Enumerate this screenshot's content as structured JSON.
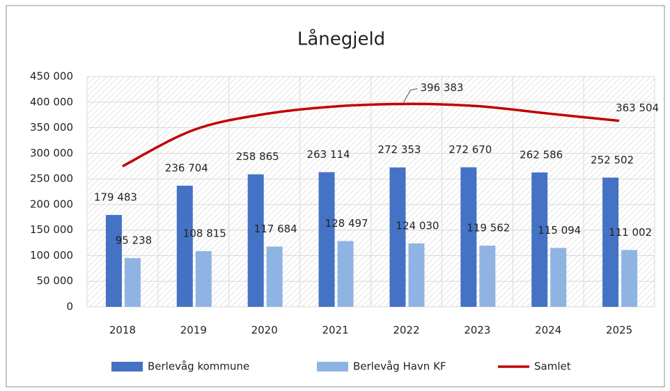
{
  "chart_data": {
    "type": "bar",
    "title": "Lånegjeld",
    "categories": [
      "2018",
      "2019",
      "2020",
      "2021",
      "2022",
      "2023",
      "2024",
      "2025"
    ],
    "series": [
      {
        "name": "Berlevåg kommune",
        "color": "#4472c4",
        "type": "bar",
        "values": [
          179483,
          236704,
          258865,
          263114,
          272353,
          272670,
          262586,
          252502
        ],
        "value_labels": [
          "179 483",
          "236 704",
          "258 865",
          "263 114",
          "272 353",
          "272 670",
          "262 586",
          "252 502"
        ]
      },
      {
        "name": "Berlevåg Havn KF",
        "color": "#8fb4e3",
        "type": "bar",
        "values": [
          95238,
          108815,
          117684,
          128497,
          124030,
          119562,
          115094,
          111002
        ],
        "value_labels": [
          "95 238",
          "108 815",
          "117 684",
          "128 497",
          "124 030",
          "119 562",
          "115 094",
          "111 002"
        ]
      },
      {
        "name": "Samlet",
        "color": "#c00000",
        "type": "line",
        "values": [
          274721,
          345519,
          376549,
          391611,
          396383,
          392232,
          377680,
          363504
        ],
        "value_labels": [
          null,
          null,
          null,
          null,
          "396 383",
          null,
          null,
          "363 504"
        ]
      }
    ],
    "ylim": [
      0,
      450000
    ],
    "yticks": [
      0,
      {
        "value": 50000,
        "label": "50 000"
      },
      {
        "value": 100000,
        "label": "100 000"
      },
      {
        "value": 150000,
        "label": "150 000"
      },
      {
        "value": 200000,
        "label": "200 000"
      },
      {
        "value": 250000,
        "label": "250 000"
      },
      {
        "value": 300000,
        "label": "300 000"
      },
      {
        "value": 350000,
        "label": "350 000"
      },
      {
        "value": 400000,
        "label": "400 000"
      },
      {
        "value": 450000,
        "label": "450 000"
      }
    ],
    "grid": true,
    "legend": "bottom"
  }
}
